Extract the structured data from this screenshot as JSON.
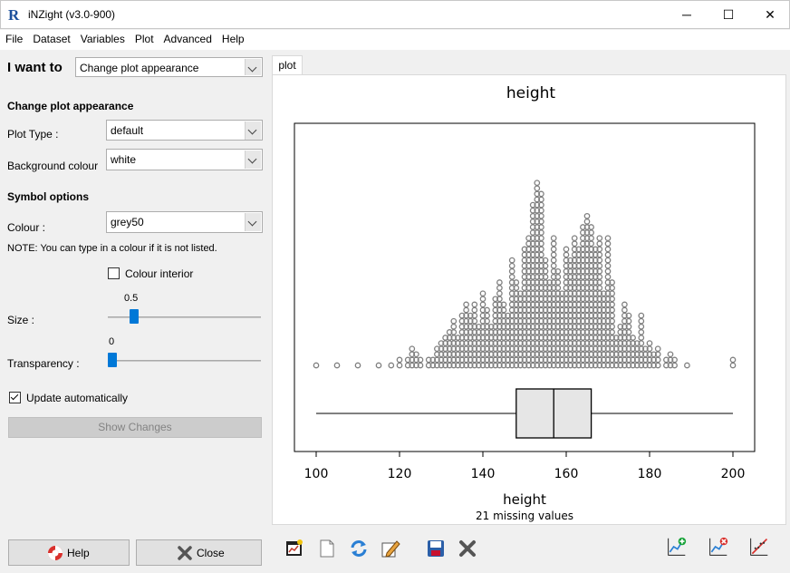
{
  "window": {
    "title": "iNZight (v3.0-900)",
    "app_icon": "R",
    "minimize": "─",
    "maximize": "☐",
    "close": "✕"
  },
  "menu": [
    "File",
    "Dataset",
    "Variables",
    "Plot",
    "Advanced",
    "Help"
  ],
  "left": {
    "i_want_to_label": "I want to",
    "i_want_to_value": "Change plot appearance",
    "section_title": "Change plot appearance",
    "plot_type_label": "Plot Type :",
    "plot_type_value": "default",
    "background_label": "Background colour",
    "background_value": "white",
    "symbol_options": "Symbol options",
    "colour_label": "Colour :",
    "colour_value": "grey50",
    "note": "NOTE: You can type in a colour if it is not listed.",
    "colour_interior": "Colour interior",
    "colour_interior_checked": false,
    "size_label": "Size :",
    "size_value": "0.5",
    "size_fraction": 0.14,
    "transparency_label": "Transparency :",
    "transparency_value": "0",
    "transparency_fraction": 0,
    "update_auto": "Update automatically",
    "update_auto_checked": true,
    "show_changes": "Show Changes",
    "help_button": "Help",
    "close_button": "Close"
  },
  "tab": {
    "label": "plot"
  },
  "toolbar_icons": [
    "new-plot-window-icon",
    "new-page-icon",
    "refresh-icon",
    "edit-icon",
    "save-icon",
    "delete-icon",
    "add-inference-icon",
    "remove-inference-icon",
    "trend-line-icon"
  ],
  "chart_data": {
    "type": "dotplot",
    "title": "height",
    "xlabel": "height",
    "note": "21 missing values",
    "xlim": [
      100,
      200
    ],
    "xticks": [
      100,
      120,
      140,
      160,
      180,
      200
    ],
    "symbol_colour": "grey50",
    "dot_columns": [
      {
        "x": 100,
        "n": 1
      },
      {
        "x": 105,
        "n": 1
      },
      {
        "x": 110,
        "n": 1
      },
      {
        "x": 115,
        "n": 1
      },
      {
        "x": 118,
        "n": 1
      },
      {
        "x": 120,
        "n": 2
      },
      {
        "x": 122,
        "n": 2
      },
      {
        "x": 123,
        "n": 4
      },
      {
        "x": 124,
        "n": 3
      },
      {
        "x": 125,
        "n": 2
      },
      {
        "x": 127,
        "n": 2
      },
      {
        "x": 128,
        "n": 2
      },
      {
        "x": 129,
        "n": 4
      },
      {
        "x": 130,
        "n": 5
      },
      {
        "x": 131,
        "n": 6
      },
      {
        "x": 132,
        "n": 7
      },
      {
        "x": 133,
        "n": 9
      },
      {
        "x": 134,
        "n": 6
      },
      {
        "x": 135,
        "n": 10
      },
      {
        "x": 136,
        "n": 12
      },
      {
        "x": 137,
        "n": 10
      },
      {
        "x": 138,
        "n": 12
      },
      {
        "x": 139,
        "n": 8
      },
      {
        "x": 140,
        "n": 14
      },
      {
        "x": 141,
        "n": 11
      },
      {
        "x": 142,
        "n": 8
      },
      {
        "x": 143,
        "n": 13
      },
      {
        "x": 144,
        "n": 16
      },
      {
        "x": 145,
        "n": 12
      },
      {
        "x": 146,
        "n": 10
      },
      {
        "x": 147,
        "n": 20
      },
      {
        "x": 148,
        "n": 16
      },
      {
        "x": 149,
        "n": 14
      },
      {
        "x": 150,
        "n": 22
      },
      {
        "x": 151,
        "n": 24
      },
      {
        "x": 152,
        "n": 30
      },
      {
        "x": 153,
        "n": 34
      },
      {
        "x": 154,
        "n": 32
      },
      {
        "x": 155,
        "n": 20
      },
      {
        "x": 156,
        "n": 16
      },
      {
        "x": 157,
        "n": 24
      },
      {
        "x": 158,
        "n": 18
      },
      {
        "x": 159,
        "n": 14
      },
      {
        "x": 160,
        "n": 22
      },
      {
        "x": 161,
        "n": 20
      },
      {
        "x": 162,
        "n": 24
      },
      {
        "x": 163,
        "n": 22
      },
      {
        "x": 164,
        "n": 26
      },
      {
        "x": 165,
        "n": 28
      },
      {
        "x": 166,
        "n": 26
      },
      {
        "x": 167,
        "n": 22
      },
      {
        "x": 168,
        "n": 24
      },
      {
        "x": 169,
        "n": 14
      },
      {
        "x": 170,
        "n": 24
      },
      {
        "x": 171,
        "n": 16
      },
      {
        "x": 172,
        "n": 6
      },
      {
        "x": 173,
        "n": 8
      },
      {
        "x": 174,
        "n": 12
      },
      {
        "x": 175,
        "n": 10
      },
      {
        "x": 176,
        "n": 6
      },
      {
        "x": 177,
        "n": 5
      },
      {
        "x": 178,
        "n": 10
      },
      {
        "x": 179,
        "n": 4
      },
      {
        "x": 180,
        "n": 5
      },
      {
        "x": 181,
        "n": 3
      },
      {
        "x": 182,
        "n": 4
      },
      {
        "x": 184,
        "n": 2
      },
      {
        "x": 185,
        "n": 3
      },
      {
        "x": 186,
        "n": 2
      },
      {
        "x": 189,
        "n": 1
      },
      {
        "x": 200,
        "n": 2
      }
    ],
    "boxplot": {
      "min": 100,
      "q1": 148,
      "median": 157,
      "q3": 166,
      "max": 200
    }
  }
}
